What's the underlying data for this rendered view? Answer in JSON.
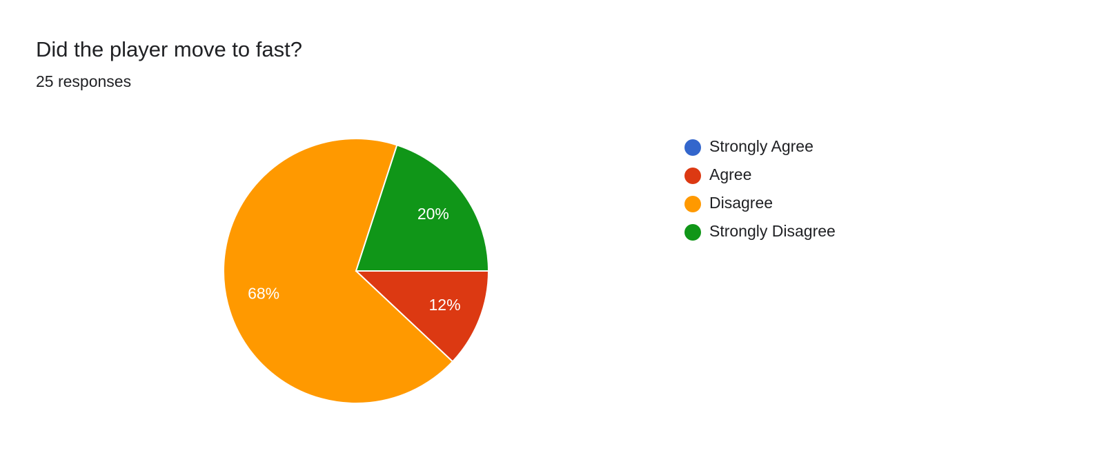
{
  "chart_data": {
    "type": "pie",
    "title": "Did the player move to fast?",
    "subtitle": "25 responses",
    "categories": [
      "Strongly Agree",
      "Agree",
      "Disagree",
      "Strongly Disagree"
    ],
    "values": [
      0,
      12,
      68,
      20
    ],
    "value_labels": [
      null,
      "12%",
      "68%",
      "20%"
    ],
    "colors": [
      "#3366cc",
      "#dc3912",
      "#ff9900",
      "#109618"
    ],
    "legend": "right"
  }
}
